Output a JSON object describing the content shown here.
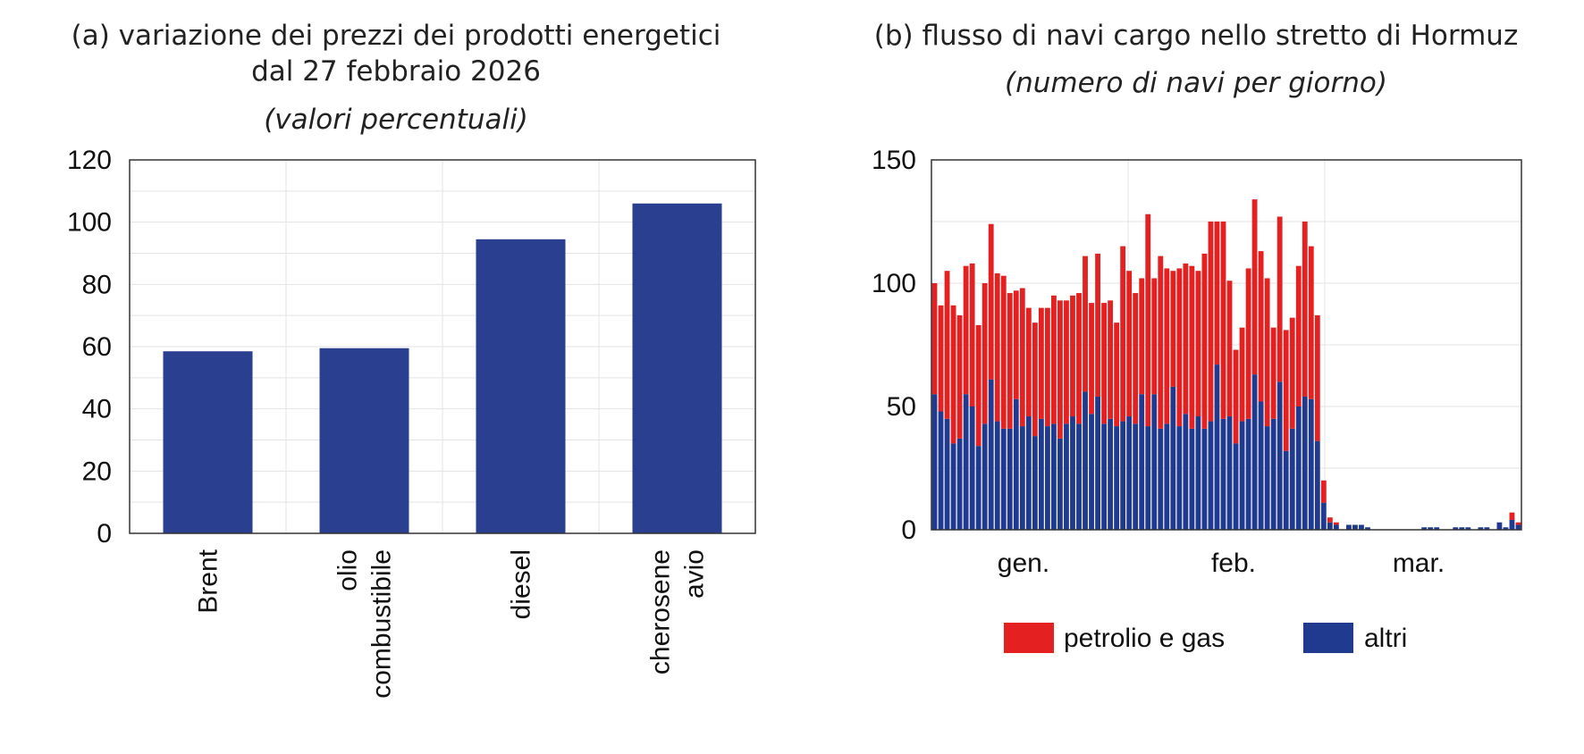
{
  "chart_data": [
    {
      "type": "bar",
      "title": "(a) variazione dei prezzi dei prodotti energetici",
      "title_line2": "dal 27 febbraio 2026",
      "subtitle": "(valori percentuali)",
      "categories": [
        [
          "Brent"
        ],
        [
          "olio",
          "combustibile"
        ],
        [
          "diesel"
        ],
        [
          "cherosene",
          "avio"
        ]
      ],
      "values": [
        58.5,
        59.5,
        94.5,
        106
      ],
      "ylim": [
        0,
        120
      ],
      "yticks": [
        "0",
        "20",
        "40",
        "60",
        "80",
        "100",
        "120"
      ],
      "color": "#2a3f8f",
      "grid": true
    },
    {
      "type": "bar",
      "stacked": true,
      "title": "(b) flusso di navi cargo nello stretto di Hormuz",
      "subtitle": "(numero di navi per giorno)",
      "ylim": [
        0,
        150
      ],
      "yticks": [
        "0",
        "50",
        "100",
        "150"
      ],
      "xticks": [
        "gen.",
        "feb.",
        "mar."
      ],
      "grid": true,
      "series": [
        {
          "name": "altri",
          "color": "#1f3a8f",
          "values": [
            55,
            48,
            45,
            35,
            37,
            55,
            50,
            34,
            43,
            61,
            44,
            41,
            41,
            53,
            42,
            46,
            38,
            45,
            42,
            43,
            37,
            43,
            46,
            43,
            56,
            47,
            54,
            43,
            45,
            42,
            44,
            46,
            43,
            55,
            42,
            55,
            41,
            43,
            58,
            42,
            47,
            41,
            46,
            41,
            44,
            67,
            45,
            46,
            35,
            44,
            45,
            63,
            52,
            42,
            45,
            60,
            32,
            41,
            50,
            54,
            53,
            36,
            11,
            3,
            2,
            0,
            2,
            2,
            2,
            1,
            0,
            0,
            0,
            0,
            0,
            0,
            0,
            0,
            1,
            1,
            1,
            0,
            0,
            1,
            1,
            1,
            0,
            1,
            1,
            0,
            3,
            1,
            4,
            2
          ]
        },
        {
          "name": "petrolio e gas",
          "color": "#e42020",
          "values": [
            45,
            43,
            60,
            56,
            50,
            52,
            58,
            49,
            57,
            63,
            60,
            62,
            55,
            44,
            56,
            44,
            46,
            45,
            48,
            52,
            56,
            50,
            49,
            53,
            55,
            45,
            58,
            49,
            48,
            42,
            71,
            59,
            53,
            47,
            86,
            47,
            70,
            63,
            47,
            64,
            61,
            66,
            59,
            71,
            81,
            58,
            80,
            55,
            38,
            38,
            61,
            71,
            61,
            60,
            37,
            67,
            49,
            45,
            57,
            71,
            62,
            51,
            9,
            2,
            1,
            0,
            0,
            0,
            0,
            0,
            0,
            0,
            0,
            0,
            0,
            0,
            0,
            0,
            0,
            0,
            0,
            0,
            0,
            0,
            0,
            0,
            0,
            0,
            0,
            0,
            0,
            0,
            3,
            1
          ]
        }
      ]
    }
  ],
  "legend": [
    {
      "label": "petrolio e gas",
      "color": "#e42020"
    },
    {
      "label": "altri",
      "color": "#1f3a8f"
    }
  ]
}
